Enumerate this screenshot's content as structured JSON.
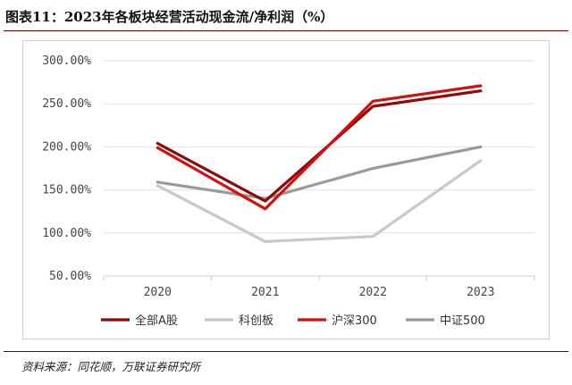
{
  "figure": {
    "title": "图表11：2023年各板块经营活动现金流/净利润（%）",
    "source": "资料来源：同花顺，万联证券研究所"
  },
  "chart_data": {
    "type": "line",
    "title": "",
    "xlabel": "",
    "ylabel": "",
    "categories": [
      "2020",
      "2021",
      "2022",
      "2023"
    ],
    "ylim": [
      50,
      300
    ],
    "yticks": [
      50,
      100,
      150,
      200,
      250,
      300
    ],
    "ytick_labels": [
      "50.00%",
      "100.00%",
      "150.00%",
      "200.00%",
      "250.00%",
      "300.00%"
    ],
    "grid": true,
    "legend_position": "bottom",
    "series": [
      {
        "name": "全部A股",
        "color": "#8b0a0a",
        "values": [
          204,
          137,
          247,
          265
        ]
      },
      {
        "name": "科创板",
        "color": "#c8c8c8",
        "values": [
          155,
          90,
          96,
          184
        ]
      },
      {
        "name": "沪深300",
        "color": "#d40f0f",
        "values": [
          199,
          128,
          253,
          271
        ]
      },
      {
        "name": "中证500",
        "color": "#9a9a9a",
        "values": [
          159,
          140,
          175,
          200
        ]
      }
    ]
  }
}
